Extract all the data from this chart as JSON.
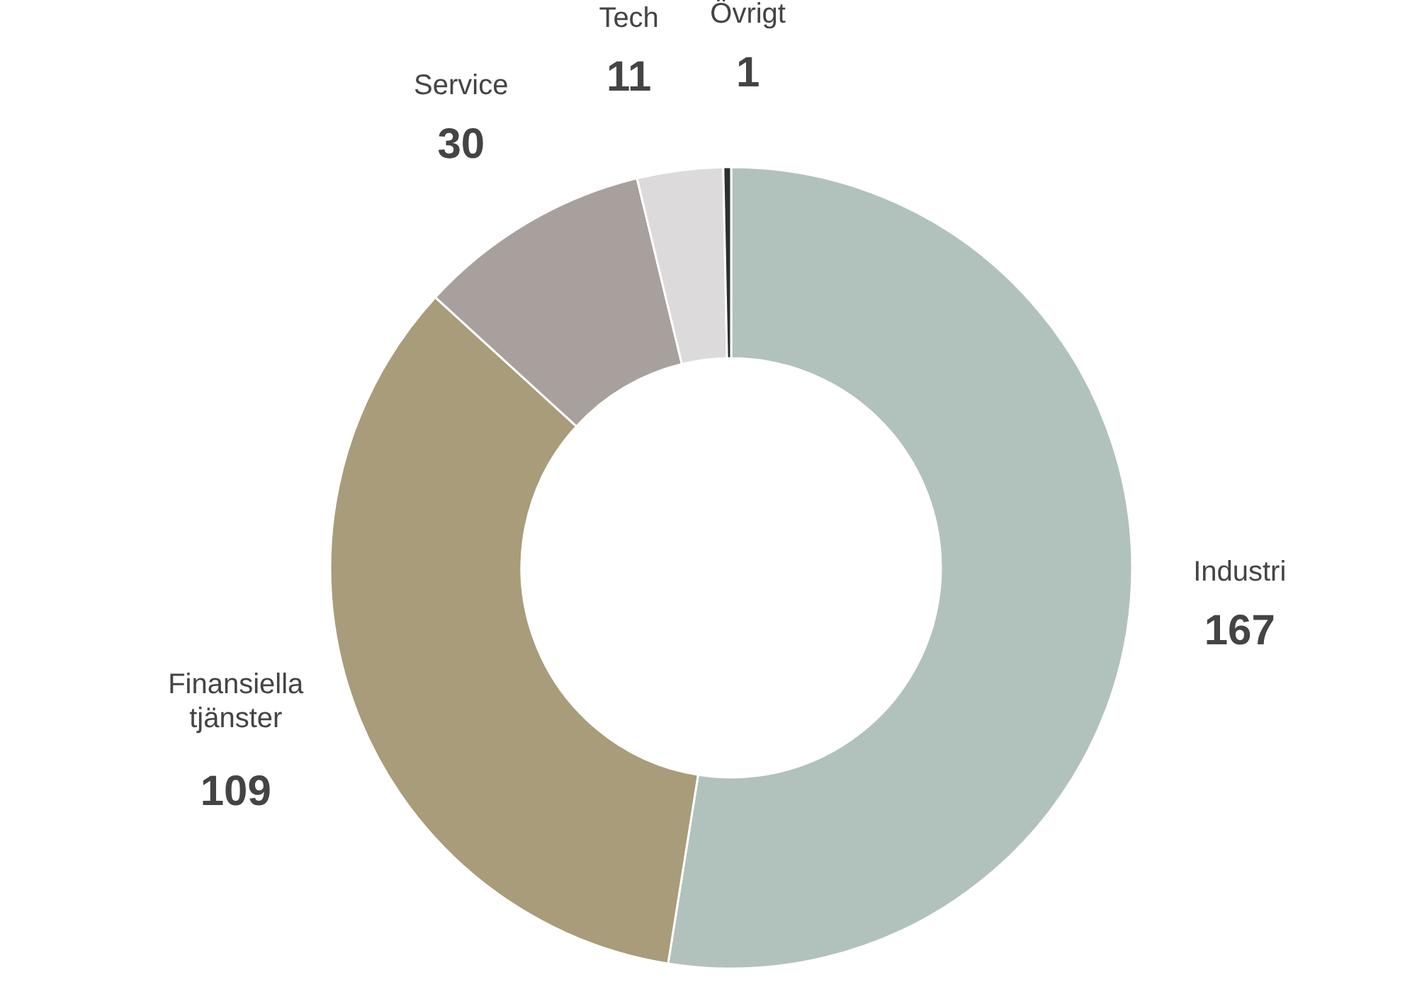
{
  "chart_data": {
    "type": "donut",
    "categories": [
      "Industri",
      "Finansiella tjänster",
      "Service",
      "Tech",
      "Övrigt"
    ],
    "values": [
      167,
      109,
      30,
      11,
      1
    ],
    "colors": [
      "#b0c2bb",
      "#a89c7a",
      "#a8a09c",
      "#dcdadb",
      "#2a2f2f"
    ],
    "data_labels": true
  }
}
